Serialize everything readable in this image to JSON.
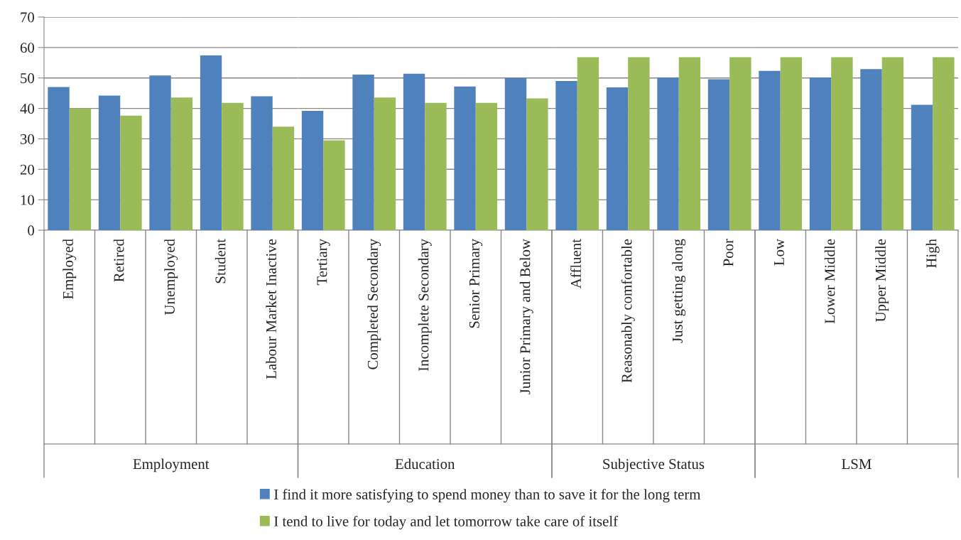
{
  "chart_data": [
    {
      "type": "bar",
      "xlabel": "Employment",
      "categories": [
        "Employed",
        "Retired",
        "Unemployed",
        "Student",
        "Labour Market Inactive"
      ],
      "series": [
        {
          "name": "I find it more satisfying to spend money than to save it for the long term",
          "color": "#4f81bd",
          "values": [
            47,
            44.2,
            50.8,
            57.4,
            44
          ]
        },
        {
          "name": "I tend to live for today and let tomorrow take care of itself",
          "color": "#9bbb59",
          "values": [
            40,
            37.6,
            43.6,
            41.8,
            34
          ]
        }
      ],
      "ylim": [
        0,
        70
      ],
      "yticks": [
        0,
        10,
        20,
        30,
        40,
        50,
        60,
        70
      ],
      "grid": "y",
      "legend": "bottom"
    },
    {
      "type": "bar",
      "xlabel": "Education",
      "categories": [
        "Tertiary",
        "Completed Secondary",
        "Incomplete Secondary",
        "Senior Primary",
        "Junior Primary and Below"
      ],
      "series": [
        {
          "color": "#4f81bd",
          "values": [
            39.2,
            51.1,
            51.4,
            47.2,
            50
          ]
        },
        {
          "color": "#9bbb59",
          "values": [
            29.5,
            43.6,
            41.8,
            41.8,
            43.3
          ]
        }
      ],
      "ylim": [
        0,
        70
      ],
      "yticks": [
        0,
        10,
        20,
        30,
        40,
        50,
        60,
        70
      ],
      "grid": "y",
      "tick_labels": "x"
    },
    {
      "type": "bar",
      "xlabel": "Subjective Status",
      "categories": [
        "Affluent",
        "Reasonably comfortable",
        "Just getting along",
        "Poor"
      ],
      "series": [
        {
          "color": "#4f81bd",
          "values": [
            49,
            46.9,
            50.1,
            49.6
          ]
        },
        {
          "color": "#9bbb59",
          "values": [
            56.8,
            56.8,
            56.8,
            56.8
          ]
        }
      ],
      "ylim": [
        0,
        70
      ],
      "yticks": [
        0,
        10,
        20,
        30,
        40,
        50,
        60,
        70
      ],
      "grid": "y",
      "tick_labels": "x"
    },
    {
      "type": "bar",
      "xlabel": "LSM",
      "categories": [
        "Low",
        "Lower Middle",
        "Upper Middle",
        "High"
      ],
      "series": [
        {
          "color": "#4f81bd",
          "values": [
            52.3,
            50.1,
            52.9,
            41.2
          ]
        },
        {
          "color": "#9bbb59",
          "values": [
            56.8,
            56.8,
            56.8,
            56.8
          ]
        }
      ],
      "ylim": [
        0,
        70
      ],
      "yticks": [
        0,
        10,
        20,
        30,
        40,
        50,
        60,
        70
      ],
      "grid": "y",
      "tick_labels": "x"
    }
  ]
}
